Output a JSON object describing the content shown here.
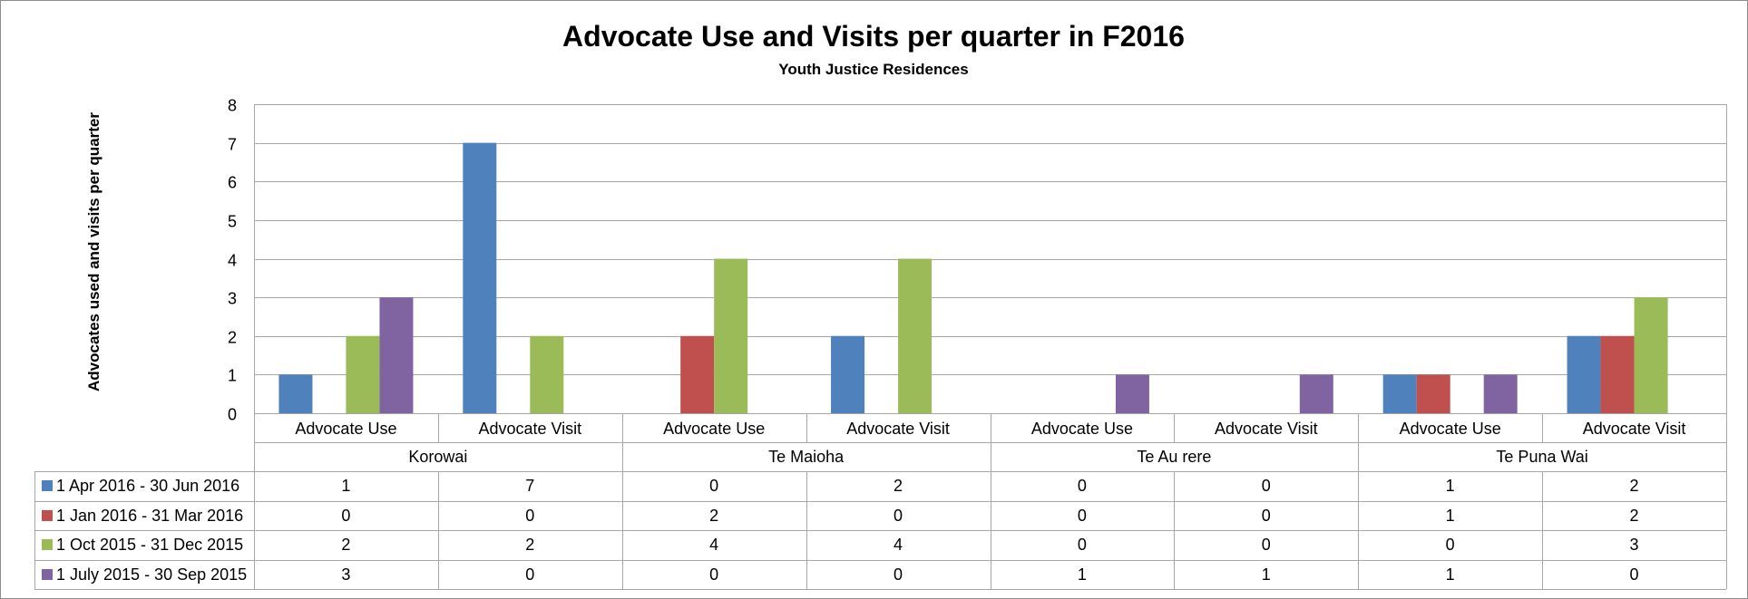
{
  "chart_data": {
    "type": "bar",
    "title": "Advocate Use and Visits per quarter in F2016",
    "subtitle": "Youth Justice Residences",
    "xlabel": "",
    "ylabel": "Advocates used and visits per quarter",
    "ylim": [
      0,
      8
    ],
    "yticks": [
      0,
      1,
      2,
      3,
      4,
      5,
      6,
      7,
      8
    ],
    "grid": true,
    "legend_placement": "data-table-left",
    "groups": [
      "Korowai",
      "Te Maioha",
      "Te Au rere",
      "Te Puna Wai"
    ],
    "categories": [
      "Advocate Use",
      "Advocate Visit",
      "Advocate Use",
      "Advocate Visit",
      "Advocate Use",
      "Advocate Visit",
      "Advocate Use",
      "Advocate Visit"
    ],
    "series": [
      {
        "name": "1 Apr 2016 - 30 Jun 2016",
        "color": "#4F81BD",
        "values": [
          1,
          7,
          0,
          2,
          0,
          0,
          1,
          2
        ]
      },
      {
        "name": "1 Jan 2016 - 31 Mar 2016",
        "color": "#C0504D",
        "values": [
          0,
          0,
          2,
          0,
          0,
          0,
          1,
          2
        ]
      },
      {
        "name": "1 Oct 2015 - 31 Dec 2015",
        "color": "#9BBB59",
        "values": [
          2,
          2,
          4,
          4,
          0,
          0,
          0,
          3
        ]
      },
      {
        "name": "1 July 2015 - 30 Sep 2015",
        "color": "#8064A2",
        "values": [
          3,
          0,
          0,
          0,
          1,
          1,
          1,
          0
        ]
      }
    ]
  }
}
